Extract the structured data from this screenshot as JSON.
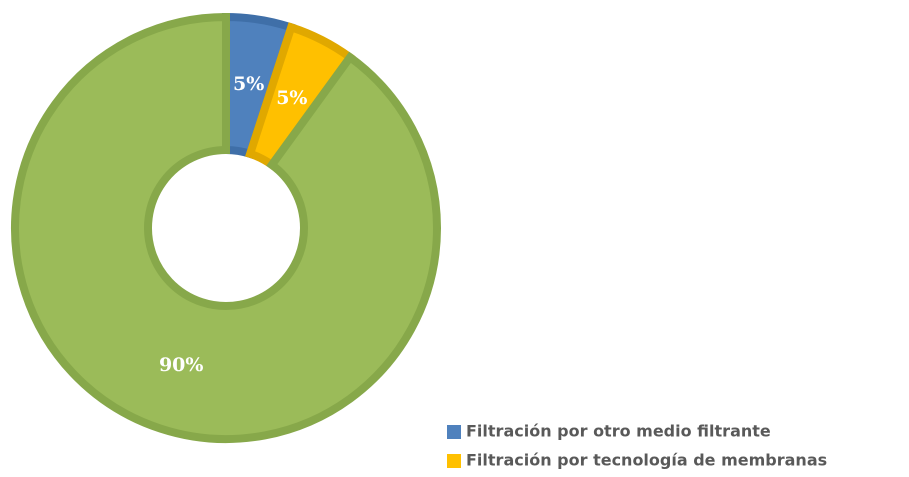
{
  "chart_data": {
    "type": "donut",
    "categories": [
      "Filtración por otro medio filtrante",
      "Filtración por tecnología de membranas",
      null
    ],
    "values": [
      5,
      5,
      90
    ],
    "value_labels": [
      "5%",
      "5%",
      "90%"
    ],
    "colors": [
      "#4f81bd",
      "#ffc000",
      "#9bbb59"
    ],
    "border_colors": [
      "#3f6fa8",
      "#e0a800",
      "#87a84a"
    ],
    "legend": "bottom-right"
  }
}
